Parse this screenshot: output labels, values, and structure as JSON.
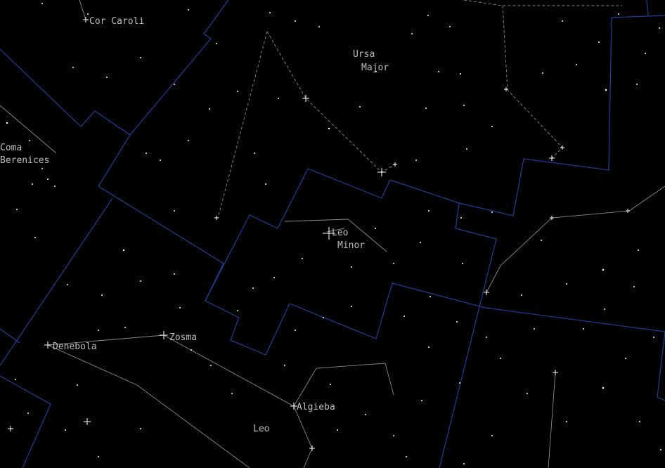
{
  "view": {
    "background": "#000000",
    "boundary_color": "#1d3f9a",
    "figure_color": "#8a8a8a",
    "label_color": "#bdbdbd",
    "star_color": "#ffffff"
  },
  "labels": {
    "cor_caroli": "Cor Caroli",
    "ursa_major_1": "Ursa",
    "ursa_major_2": "Major",
    "coma_1": "Coma",
    "coma_2": "Berenices",
    "leo_minor_1": "Leo",
    "leo_minor_2": "Minor",
    "denebola": "Denebola",
    "zosma": "Zosma",
    "algieba": "Algieba",
    "leo": "Leo"
  }
}
